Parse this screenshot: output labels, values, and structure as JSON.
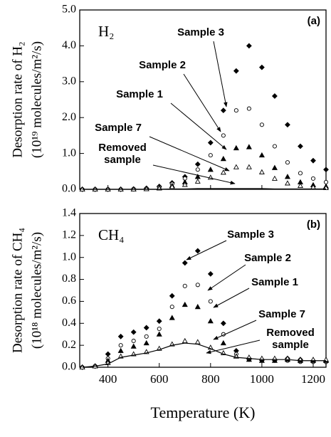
{
  "chart_data": [
    {
      "type": "line",
      "panel_label": "(a)",
      "species": "H₂",
      "ylabel": [
        "Desorption rate of H₂",
        "(10¹⁹ molecules/m²/s)"
      ],
      "x": [
        300,
        350,
        400,
        450,
        500,
        550,
        600,
        650,
        700,
        750,
        800,
        850,
        900,
        950,
        1000,
        1050,
        1100,
        1150,
        1200,
        1250
      ],
      "xlim": [
        290,
        1250
      ],
      "xticks": [
        400,
        600,
        800,
        1000,
        1200
      ],
      "ylim": [
        0,
        5
      ],
      "yticks": [
        {
          "value": 0,
          "label": "0.0"
        },
        {
          "value": 1,
          "label": "1.0"
        },
        {
          "value": 2,
          "label": "2.0"
        },
        {
          "value": 3,
          "label": "3.0"
        },
        {
          "value": 4,
          "label": "4.0"
        },
        {
          "value": 5,
          "label": "5.0"
        }
      ],
      "series": [
        {
          "name": "Sample 3",
          "color": "#000000",
          "marker": "filled-diamond",
          "values": [
            0,
            0,
            0,
            0,
            0.01,
            0.03,
            0.08,
            0.18,
            0.35,
            0.7,
            1.3,
            2.2,
            3.3,
            4.0,
            3.4,
            2.6,
            1.8,
            1.2,
            0.8,
            0.55
          ]
        },
        {
          "name": "Sample 2",
          "color": "#000000",
          "marker": "open-circle",
          "values": [
            0,
            0,
            0,
            0,
            0.01,
            0.02,
            0.06,
            0.15,
            0.3,
            0.55,
            0.95,
            1.5,
            2.2,
            2.25,
            1.8,
            1.2,
            0.75,
            0.45,
            0.3,
            0.2
          ]
        },
        {
          "name": "Sample 1",
          "color": "#000000",
          "marker": "filled-triangle",
          "values": [
            0,
            0,
            0,
            0,
            0,
            0.01,
            0.04,
            0.1,
            0.2,
            0.35,
            0.55,
            0.85,
            1.15,
            1.18,
            0.95,
            0.6,
            0.35,
            0.2,
            0.12,
            0.08
          ]
        },
        {
          "name": "Sample 7",
          "color": "#000000",
          "marker": "open-triangle",
          "values": [
            0,
            0,
            0,
            0,
            0,
            0.01,
            0.03,
            0.07,
            0.13,
            0.22,
            0.33,
            0.47,
            0.62,
            0.62,
            0.48,
            0.3,
            0.17,
            0.1,
            0.06,
            0.04
          ]
        },
        {
          "name": "Removed sample",
          "color": "#000000",
          "marker": "none",
          "values": [
            0,
            0,
            0,
            0,
            0,
            0,
            0,
            0.01,
            0.01,
            0.02,
            0.02,
            0.02,
            0.02,
            0.02,
            0.02,
            0.01,
            0.01,
            0.01,
            0.01,
            0.01
          ]
        }
      ]
    },
    {
      "type": "line",
      "panel_label": "(b)",
      "species": "CH₄",
      "ylabel": [
        "Desorption rate of CH₄",
        "(10¹⁸ molecules/m²/s)"
      ],
      "xlabel": "Temperature (K)",
      "x": [
        300,
        350,
        400,
        450,
        500,
        550,
        600,
        650,
        700,
        750,
        800,
        850,
        900,
        950,
        1000,
        1050,
        1100,
        1150,
        1200,
        1250
      ],
      "xlim": [
        290,
        1250
      ],
      "xticks": [
        400,
        600,
        800,
        1000,
        1200
      ],
      "ylim": [
        0,
        1.4
      ],
      "yticks": [
        {
          "value": 0,
          "label": "0.0"
        },
        {
          "value": 0.2,
          "label": "0.2"
        },
        {
          "value": 0.4,
          "label": "0.4"
        },
        {
          "value": 0.6,
          "label": "0.6"
        },
        {
          "value": 0.8,
          "label": "0.8"
        },
        {
          "value": 1.0,
          "label": "1.0"
        },
        {
          "value": 1.2,
          "label": "1.2"
        },
        {
          "value": 1.4,
          "label": "1.4"
        }
      ],
      "series": [
        {
          "name": "Sample 3",
          "color": "#000000",
          "marker": "filled-diamond",
          "values": [
            0,
            0.01,
            0.12,
            0.28,
            0.32,
            0.36,
            0.42,
            0.65,
            0.95,
            1.06,
            0.85,
            0.4,
            0.15,
            0.08,
            0.07,
            0.07,
            0.08,
            0.07,
            0.06,
            0.05
          ]
        },
        {
          "name": "Sample 2",
          "color": "#000000",
          "marker": "open-circle",
          "values": [
            0,
            0.01,
            0.08,
            0.2,
            0.24,
            0.28,
            0.35,
            0.55,
            0.74,
            0.75,
            0.6,
            0.3,
            0.12,
            0.07,
            0.06,
            0.06,
            0.06,
            0.05,
            0.05,
            0.05
          ]
        },
        {
          "name": "Sample 1",
          "color": "#000000",
          "marker": "filled-triangle",
          "values": [
            0,
            0.01,
            0.06,
            0.15,
            0.19,
            0.22,
            0.3,
            0.45,
            0.57,
            0.55,
            0.42,
            0.22,
            0.1,
            0.07,
            0.06,
            0.06,
            0.07,
            0.06,
            0.06,
            0.06
          ]
        },
        {
          "name": "Sample 7",
          "color": "#000000",
          "marker": "open-triangle",
          "values": [
            0,
            0.01,
            0.04,
            0.1,
            0.12,
            0.14,
            0.17,
            0.21,
            0.24,
            0.23,
            0.18,
            0.13,
            0.1,
            0.09,
            0.08,
            0.08,
            0.08,
            0.07,
            0.07,
            0.07
          ]
        },
        {
          "name": "Removed sample",
          "color": "#000000",
          "marker": "none",
          "values": [
            0,
            0.01,
            0.03,
            0.09,
            0.11,
            0.13,
            0.16,
            0.2,
            0.22,
            0.21,
            0.17,
            0.12,
            0.09,
            0.08,
            0.07,
            0.07,
            0.07,
            0.06,
            0.06,
            0.06
          ]
        }
      ]
    }
  ]
}
